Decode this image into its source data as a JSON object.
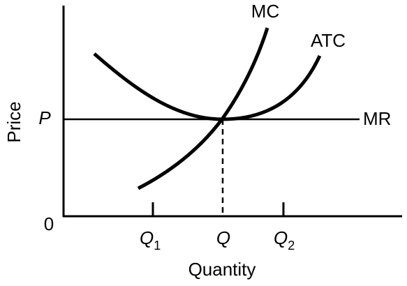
{
  "axes": {
    "y_label": "Price",
    "x_label": "Quantity",
    "origin": "0"
  },
  "price_label": "P",
  "curves": {
    "mc": "MC",
    "atc": "ATC",
    "mr": "MR"
  },
  "quantities": [
    {
      "main": "Q",
      "sub": "1"
    },
    {
      "main": "Q"
    },
    {
      "main": "Q",
      "sub": "2"
    }
  ]
}
